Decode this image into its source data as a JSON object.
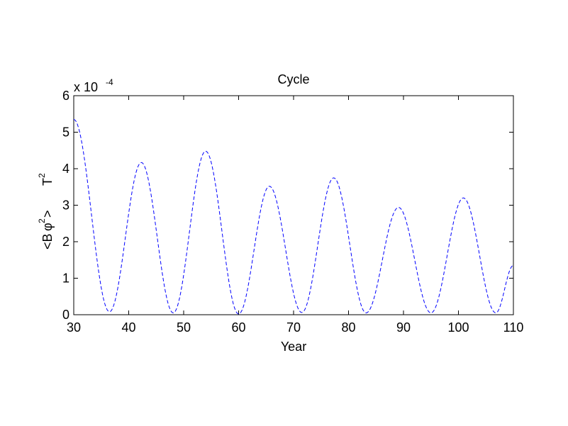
{
  "chart_data": {
    "type": "line",
    "title": "Cycle",
    "xlabel": "Year",
    "ylabel": {
      "prefix": "<B ",
      "symbol": "φ",
      "power": "2",
      "suffix": ">",
      "unit": "T",
      "unit_power": "2"
    },
    "y_multiplier": {
      "base": "x 10",
      "exponent": "-4"
    },
    "xlim": [
      30,
      110
    ],
    "ylim": [
      0,
      6
    ],
    "x_ticks": [
      "30",
      "40",
      "50",
      "60",
      "70",
      "80",
      "90",
      "100",
      "110"
    ],
    "y_ticks": [
      "0",
      "1",
      "2",
      "3",
      "4",
      "5",
      "6"
    ],
    "grid": false,
    "line_color": "#0000ff",
    "line_style": "dashed",
    "series": [
      {
        "x": [
          30,
          36.5,
          42.3,
          48.1,
          54.0,
          60.0,
          65.6,
          71.5,
          77.3,
          83.2,
          89.1,
          95.0,
          100.9,
          106.8,
          110
        ],
        "y": [
          5.35,
          0.08,
          4.17,
          0.05,
          4.48,
          0.02,
          3.52,
          0.06,
          3.75,
          0.05,
          2.94,
          0.05,
          3.2,
          0.05,
          1.35
        ]
      }
    ]
  }
}
